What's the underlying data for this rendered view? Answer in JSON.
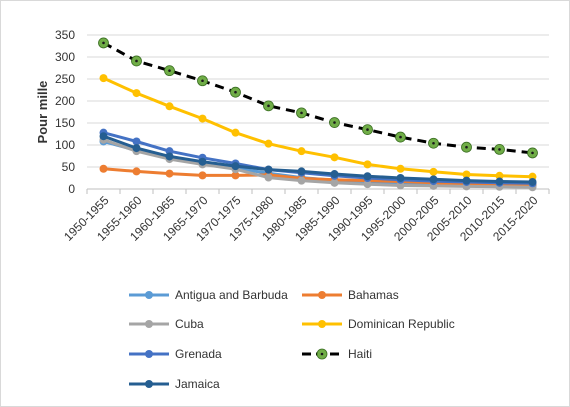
{
  "chart_data": {
    "type": "line",
    "title": "",
    "xlabel": "",
    "ylabel": "Pour mille",
    "ylim": [
      0,
      350
    ],
    "yticks": [
      0,
      50,
      100,
      150,
      200,
      250,
      300,
      350
    ],
    "grid": "horizontal",
    "legend_position": "bottom",
    "categories": [
      "1950-1955",
      "1955-1960",
      "1960-1965",
      "1965-1970",
      "1970-1975",
      "1975-1980",
      "1980-1985",
      "1985-1990",
      "1990-1995",
      "1995-2000",
      "2000-2005",
      "2005-2010",
      "2010-2015",
      "2015-2020"
    ],
    "series": [
      {
        "name": "Antigua and Barbuda",
        "color": "#5b9bd5",
        "style": "solid",
        "values": [
          108,
          88,
          70,
          58,
          47,
          36,
          26,
          20,
          16,
          13,
          11,
          10,
          8,
          7
        ]
      },
      {
        "name": "Bahamas",
        "color": "#ed7d31",
        "style": "solid",
        "values": [
          46,
          40,
          35,
          31,
          31,
          32,
          24,
          21,
          19,
          17,
          14,
          12,
          11,
          10
        ]
      },
      {
        "name": "Cuba",
        "color": "#a5a5a5",
        "style": "solid",
        "values": [
          112,
          86,
          68,
          56,
          45,
          26,
          19,
          14,
          11,
          8,
          7,
          6,
          5,
          4
        ]
      },
      {
        "name": "Dominican Republic",
        "color": "#ffc000",
        "style": "solid",
        "values": [
          252,
          218,
          188,
          160,
          128,
          103,
          86,
          72,
          56,
          46,
          39,
          33,
          30,
          28
        ]
      },
      {
        "name": "Grenada",
        "color": "#4472c4",
        "style": "solid",
        "values": [
          128,
          108,
          86,
          71,
          58,
          44,
          37,
          30,
          25,
          21,
          18,
          16,
          14,
          13
        ]
      },
      {
        "name": "Haiti",
        "color": "#000000",
        "style": "dashed",
        "marker_color": "#70ad47",
        "values": [
          332,
          291,
          269,
          246,
          220,
          189,
          173,
          151,
          135,
          118,
          104,
          95,
          90,
          82
        ]
      },
      {
        "name": "Jamaica",
        "color": "#255e91",
        "style": "solid",
        "values": [
          120,
          93,
          74,
          62,
          52,
          44,
          40,
          34,
          29,
          25,
          22,
          19,
          17,
          16
        ]
      }
    ]
  }
}
